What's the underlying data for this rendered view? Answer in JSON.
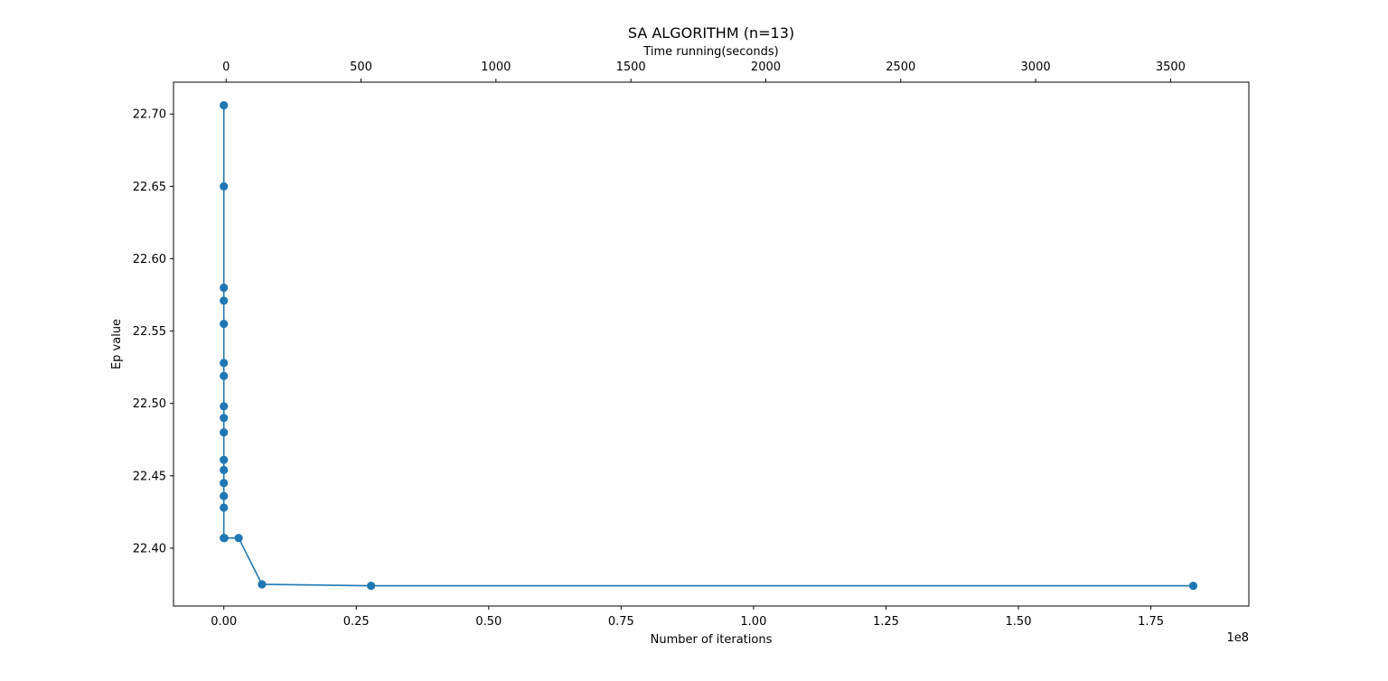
{
  "chart_data": {
    "type": "line",
    "title": "SA ALGORITHM (n=13)",
    "xlabel": "Number of iterations",
    "ylabel": "Ep value",
    "x2label": "Time running(seconds)",
    "x_offset_text": "1e8",
    "xlim": [
      -0.095,
      1.935
    ],
    "ylim": [
      22.36,
      22.722
    ],
    "x2lim": [
      -195,
      3790
    ],
    "grid": false,
    "series_color": "#1f77b4",
    "x_ticks": [
      0.0,
      0.25,
      0.5,
      0.75,
      1.0,
      1.25,
      1.5,
      1.75
    ],
    "x_tick_labels": [
      "0.00",
      "0.25",
      "0.50",
      "0.75",
      "1.00",
      "1.25",
      "1.50",
      "1.75"
    ],
    "y_ticks": [
      22.4,
      22.45,
      22.5,
      22.55,
      22.6,
      22.65,
      22.7
    ],
    "y_tick_labels": [
      "22.40",
      "22.45",
      "22.50",
      "22.55",
      "22.60",
      "22.65",
      "22.70"
    ],
    "x2_ticks": [
      0,
      500,
      1000,
      1500,
      2000,
      2500,
      3000,
      3500
    ],
    "x2_tick_labels": [
      "0",
      "500",
      "1000",
      "1500",
      "2000",
      "2500",
      "3000",
      "3500"
    ],
    "series": [
      {
        "x": [
          0.0,
          0.0,
          0.0,
          0.0,
          0.0,
          0.0,
          0.0,
          0.0,
          0.0,
          0.0,
          0.0,
          0.0,
          0.0,
          0.0,
          0.0,
          0.0,
          0.001,
          0.028,
          0.072,
          0.278,
          1.83
        ],
        "y": [
          22.706,
          22.65,
          22.58,
          22.571,
          22.555,
          22.528,
          22.519,
          22.498,
          22.49,
          22.48,
          22.461,
          22.454,
          22.445,
          22.436,
          22.428,
          22.407,
          22.407,
          22.407,
          22.375,
          22.374,
          22.374
        ]
      }
    ]
  }
}
